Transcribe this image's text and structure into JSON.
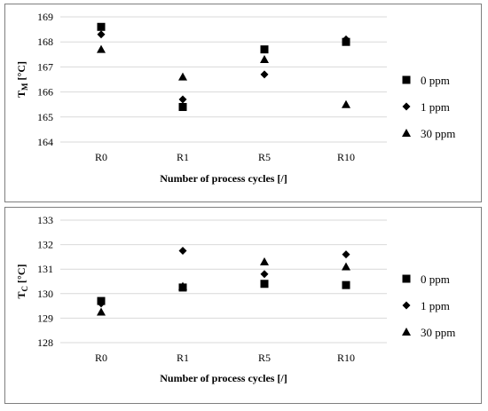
{
  "chart_data": [
    {
      "type": "scatter",
      "categories": [
        "R0",
        "R1",
        "R5",
        "R10"
      ],
      "ylabel": {
        "main": "T",
        "sub": "M",
        "unit": " [°C]"
      },
      "xlabel": "Number of process cycles [/]",
      "ylim": [
        164,
        169
      ],
      "yticks": [
        164,
        165,
        166,
        167,
        168,
        169
      ],
      "grid": true,
      "legend_position": "right",
      "series": [
        {
          "name": "0 ppm",
          "marker": "square",
          "values": [
            168.6,
            165.4,
            167.7,
            168.0
          ]
        },
        {
          "name": "1 ppm",
          "marker": "diamond",
          "values": [
            168.3,
            165.7,
            166.7,
            168.1
          ]
        },
        {
          "name": "30 ppm",
          "marker": "triangle",
          "values": [
            167.7,
            166.6,
            167.3,
            165.5
          ]
        }
      ]
    },
    {
      "type": "scatter",
      "categories": [
        "R0",
        "R1",
        "R5",
        "R10"
      ],
      "ylabel": {
        "main": "T",
        "sub": "C",
        "unit": " [°C]"
      },
      "xlabel": "Number of process cycles [/]",
      "ylim": [
        128,
        133
      ],
      "yticks": [
        128,
        129,
        130,
        131,
        132,
        133
      ],
      "grid": true,
      "legend_position": "right",
      "series": [
        {
          "name": "0 ppm",
          "marker": "square",
          "values": [
            129.7,
            130.25,
            130.4,
            130.35
          ]
        },
        {
          "name": "1 ppm",
          "marker": "diamond",
          "values": [
            129.6,
            131.75,
            130.8,
            131.6
          ]
        },
        {
          "name": "30 ppm",
          "marker": "triangle",
          "values": [
            129.25,
            130.3,
            131.3,
            131.1
          ]
        }
      ]
    }
  ],
  "colors": {
    "marker": "#000000",
    "grid": "#d9d9d9",
    "border": "#7f7f7f"
  }
}
